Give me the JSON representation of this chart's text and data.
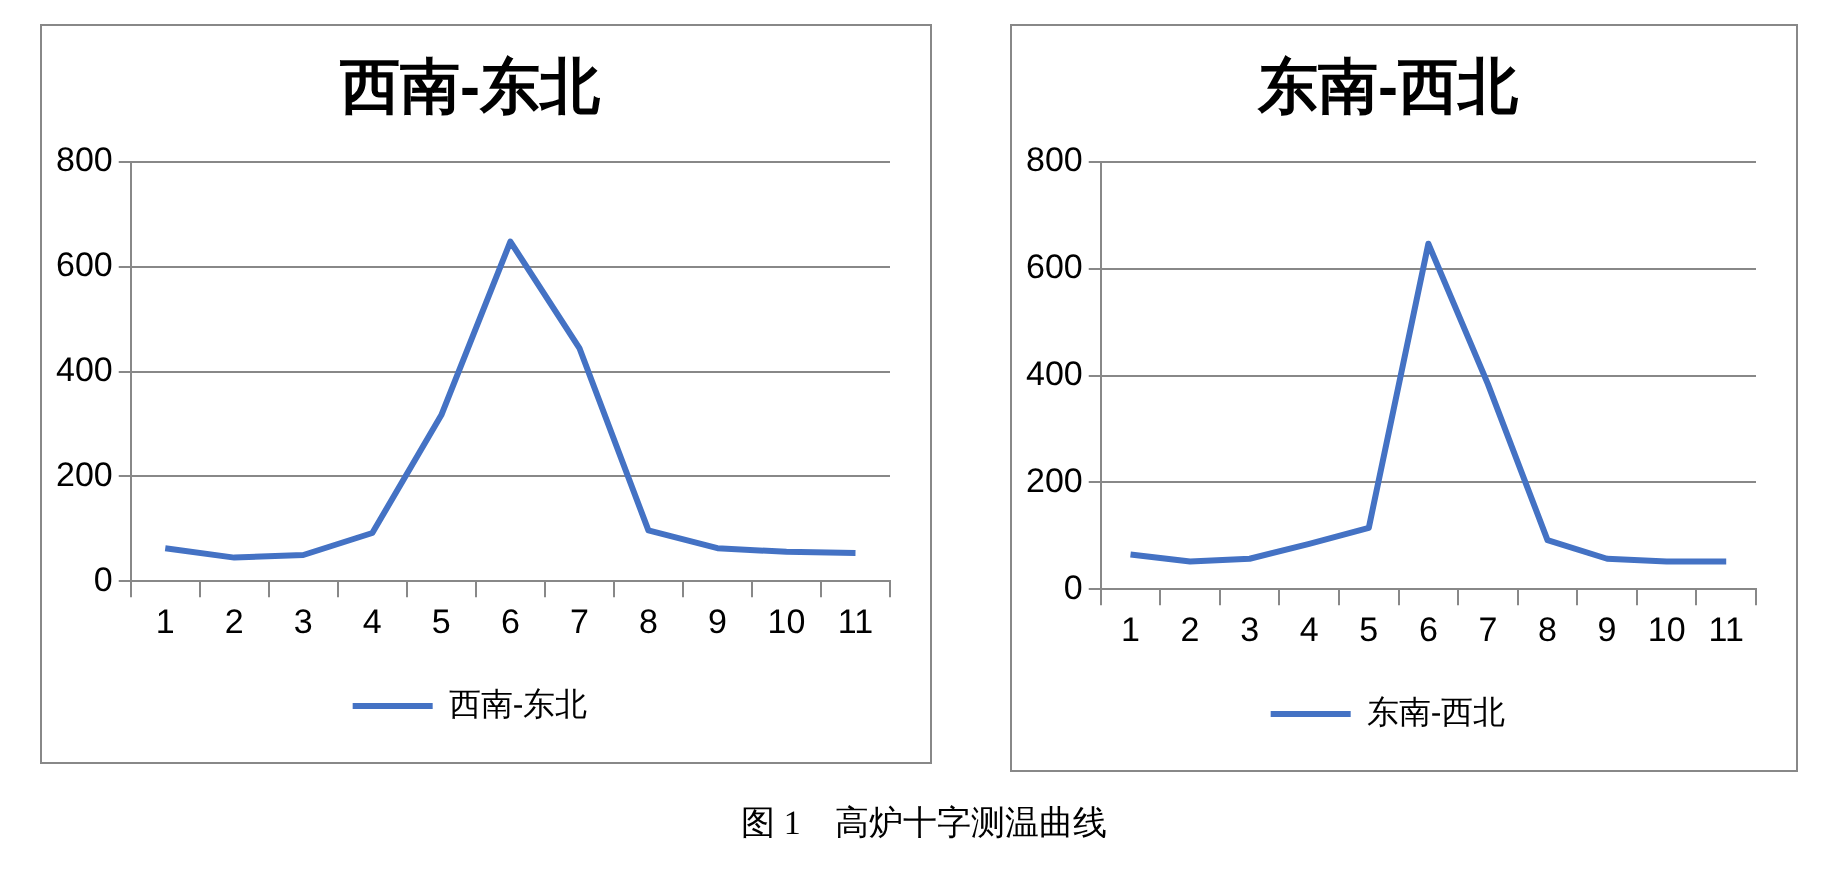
{
  "chart_data": [
    {
      "type": "line",
      "title": "西南-东北",
      "categories": [
        "1",
        "2",
        "3",
        "4",
        "5",
        "6",
        "7",
        "8",
        "9",
        "10",
        "11"
      ],
      "series": [
        {
          "name": "西南-东北",
          "color": "#4472c4",
          "values": [
            63,
            45,
            50,
            92,
            317,
            648,
            445,
            97,
            63,
            56,
            54
          ]
        }
      ],
      "ylim": [
        0,
        800
      ],
      "yticks": [
        0,
        200,
        400,
        600,
        800
      ],
      "grid": "y",
      "legend": "bottom",
      "marker": "none",
      "line_style": "solid",
      "annotations": [
        "图 1　高炉十字测温曲线"
      ]
    },
    {
      "type": "line",
      "title": "东南-西北",
      "categories": [
        "1",
        "2",
        "3",
        "4",
        "5",
        "6",
        "7",
        "8",
        "9",
        "10",
        "11"
      ],
      "series": [
        {
          "name": "东南-西北",
          "color": "#4472c4",
          "values": [
            65,
            52,
            57,
            85,
            115,
            647,
            384,
            92,
            57,
            52,
            52
          ]
        }
      ],
      "ylim": [
        0,
        800
      ],
      "yticks": [
        0,
        200,
        400,
        600,
        800
      ],
      "grid": "y",
      "legend": "bottom",
      "marker": "none",
      "line_style": "solid"
    }
  ]
}
